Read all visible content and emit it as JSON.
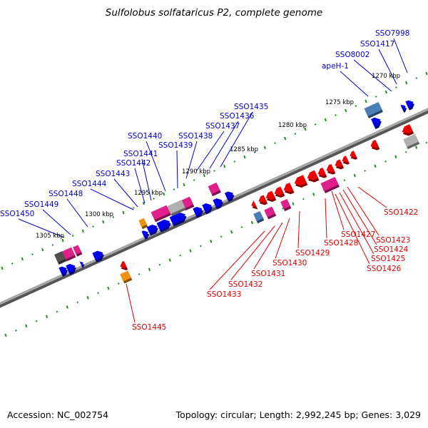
{
  "title": "Sulfolobus solfataricus P2, complete genome",
  "footer": {
    "accession": "Accession: NC_002754",
    "summary": "Topology: circular; Length: 2,992,245 bp; Genes: 3,029"
  },
  "colors": {
    "backbone": "#808080",
    "tick": "#228B22",
    "forward_label": "#0000CC",
    "reverse_label": "#DD0000",
    "forward_gene": "#0000EE",
    "reverse_gene": "#EE0000",
    "pink_gene": "#E0208A",
    "orange_gene": "#F09010",
    "steelblue_gene": "#4A7FB5",
    "gray_gene": "#B0B0B0",
    "darkgray_gene": "#505050"
  },
  "scale_labels": [
    "1270 kbp",
    "1275 kbp",
    "1280 kbp",
    "1285 kbp",
    "1290 kbp",
    "1295 kbp",
    "1300 kbp",
    "1305 kbp"
  ],
  "forward_labels": [
    "SSO7998",
    "SSO1417",
    "SSO8002",
    "apeH-1",
    "SSO1435",
    "SSO1436",
    "SSO1437",
    "SSO1438",
    "SSO1439",
    "SSO1440",
    "SSO1441",
    "SSO1442",
    "SSO1443",
    "SSO1444",
    "SSO1448",
    "SSO1449",
    "SSO1450"
  ],
  "reverse_labels": [
    "SSO1422",
    "SSO1427",
    "SSO1423",
    "SSO1424",
    "SSO1425",
    "SSO1426",
    "SSO1428",
    "SSO1429",
    "SSO1430",
    "SSO1431",
    "SSO1432",
    "SSO1433",
    "SSO1445"
  ]
}
